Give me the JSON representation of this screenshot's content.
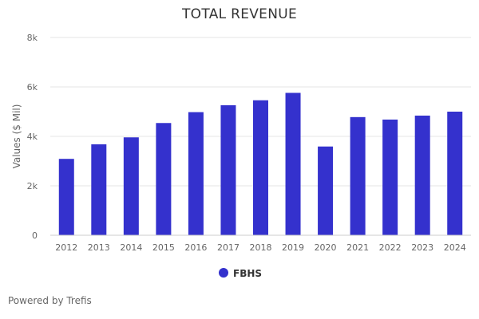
{
  "chart_data": {
    "type": "bar",
    "title": "TOTAL REVENUE",
    "xlabel": "",
    "ylabel": "Values ($ Mil)",
    "categories": [
      "2012",
      "2013",
      "2014",
      "2015",
      "2016",
      "2017",
      "2018",
      "2019",
      "2020",
      "2021",
      "2022",
      "2023",
      "2024"
    ],
    "series": [
      {
        "name": "FBHS",
        "values": [
          3090,
          3680,
          3960,
          4540,
          4980,
          5260,
          5460,
          5760,
          3590,
          4780,
          4680,
          4840,
          5000
        ]
      }
    ],
    "ylim": [
      0,
      8000
    ],
    "yticks": [
      0,
      2000,
      4000,
      6000,
      8000
    ],
    "ytick_labels": [
      "0",
      "2k",
      "4k",
      "6k",
      "8k"
    ],
    "grid": true,
    "legend": "bottom-center"
  },
  "colors": {
    "bar": "#3431cd",
    "grid": "#e6e6e6",
    "axis_line": "#cccccc"
  },
  "footer": {
    "text": "Powered by Trefis"
  }
}
